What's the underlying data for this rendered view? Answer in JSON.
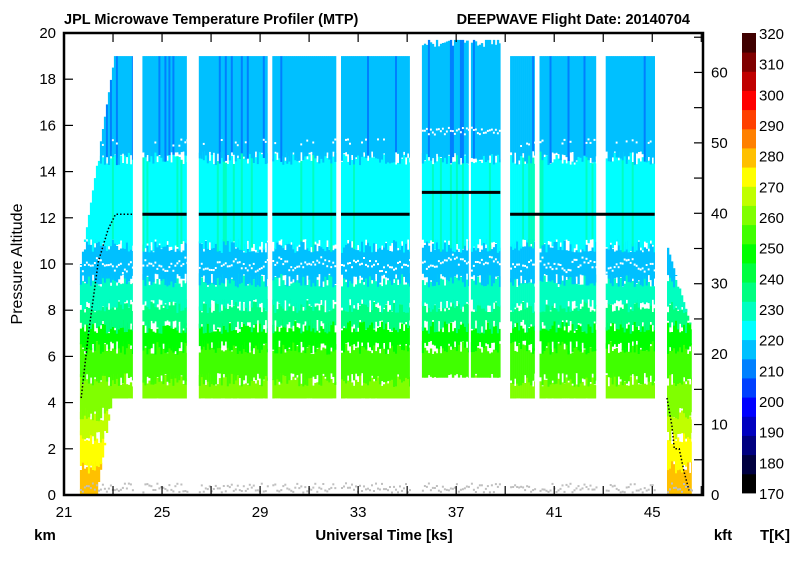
{
  "chart_data": {
    "type": "heatmap",
    "title": "JPL Microwave Temperature Profiler (MTP)",
    "subtitle": "DEEPWAVE  Flight Date: 20140704",
    "xlabel": "Universal Time [ks]",
    "ylabel": "Pressure Altitude",
    "x_unit_label": "km",
    "y2_unit_label": "kft",
    "colorbar_label": "T[K]",
    "xlim": [
      21,
      47.07
    ],
    "ylim": [
      0,
      20
    ],
    "y2lim": [
      0,
      65.6
    ],
    "xticks": [
      21,
      25,
      29,
      33,
      37,
      41,
      45
    ],
    "yticks": [
      0,
      2,
      4,
      6,
      8,
      10,
      12,
      14,
      16,
      18,
      20
    ],
    "y2ticks": [
      0,
      10,
      20,
      30,
      40,
      50,
      60
    ],
    "colorbar": {
      "range": [
        170,
        320
      ],
      "ticks": [
        170,
        180,
        190,
        200,
        210,
        220,
        230,
        240,
        250,
        260,
        270,
        280,
        290,
        300,
        310,
        320
      ],
      "colors": [
        "#000000",
        "#000040",
        "#000080",
        "#0000c0",
        "#0000ff",
        "#0040ff",
        "#0080ff",
        "#00c0ff",
        "#00ffff",
        "#00ffc0",
        "#00ff80",
        "#00ff40",
        "#00ff00",
        "#40ff00",
        "#80ff00",
        "#c0ff00",
        "#ffff00",
        "#ffc000",
        "#ff8000",
        "#ff4000",
        "#ff0000",
        "#c00000",
        "#800000",
        "#400000"
      ]
    },
    "temperature_profile_K": [
      {
        "alt_km": [
          0,
          1.2
        ],
        "T": 281
      },
      {
        "alt_km": [
          1.2,
          2.5
        ],
        "T": 272
      },
      {
        "alt_km": [
          2.5,
          3.5
        ],
        "T": 266
      },
      {
        "alt_km": [
          3.5,
          5.0
        ],
        "T": 260
      },
      {
        "alt_km": [
          5.0,
          6.4
        ],
        "T": 252
      },
      {
        "alt_km": [
          6.4,
          7.3
        ],
        "T": 245
      },
      {
        "alt_km": [
          7.3,
          8.2
        ],
        "T": 238
      },
      {
        "alt_km": [
          8.2,
          9.3
        ],
        "T": 232
      },
      {
        "alt_km": [
          9.3,
          10.8
        ],
        "T": 218
      },
      {
        "alt_km": [
          10.8,
          14.6
        ],
        "T": 225
      },
      {
        "alt_km": [
          14.6,
          19.7
        ],
        "T": 215
      }
    ],
    "segments": [
      {
        "t": [
          21.65,
          23.8
        ],
        "alt_bottom": [
          0,
          4.2
        ],
        "alt_top": [
          10,
          19
        ],
        "kind": "ascent"
      },
      {
        "t": [
          24.2,
          26.0
        ],
        "alt_bottom": [
          4.2,
          4.2
        ],
        "alt_top": [
          19,
          19
        ]
      },
      {
        "t": [
          26.5,
          29.3
        ],
        "alt_bottom": [
          4.2,
          4.2
        ],
        "alt_top": [
          19,
          19
        ]
      },
      {
        "t": [
          29.5,
          32.1
        ],
        "alt_bottom": [
          4.2,
          4.2
        ],
        "alt_top": [
          19,
          19
        ]
      },
      {
        "t": [
          32.3,
          35.1
        ],
        "alt_bottom": [
          4.2,
          4.2
        ],
        "alt_top": [
          19,
          19
        ]
      },
      {
        "t": [
          35.6,
          37.5
        ],
        "alt_bottom": [
          5.1,
          5.1
        ],
        "alt_top": [
          19.7,
          19.7
        ]
      },
      {
        "t": [
          37.6,
          38.8
        ],
        "alt_bottom": [
          5.1,
          5.1
        ],
        "alt_top": [
          19.7,
          19.7
        ]
      },
      {
        "t": [
          39.2,
          40.2
        ],
        "alt_bottom": [
          4.2,
          4.2
        ],
        "alt_top": [
          19,
          19
        ]
      },
      {
        "t": [
          40.4,
          42.7
        ],
        "alt_bottom": [
          4.2,
          4.2
        ],
        "alt_top": [
          19,
          19
        ]
      },
      {
        "t": [
          43.1,
          45.1
        ],
        "alt_bottom": [
          4.2,
          4.2
        ],
        "alt_top": [
          19,
          19
        ]
      },
      {
        "t": [
          45.6,
          46.6
        ],
        "alt_bottom": [
          0,
          0
        ],
        "alt_top": [
          10.7,
          7.1
        ],
        "kind": "descent"
      }
    ],
    "aircraft_altitude_km": [
      [
        [
          21.7,
          4.2
        ],
        [
          22.0,
          7.0
        ],
        [
          22.4,
          10.1
        ],
        [
          22.8,
          11.5
        ],
        [
          23.1,
          12.15
        ],
        [
          23.8,
          12.15
        ]
      ],
      [
        [
          24.2,
          12.15
        ],
        [
          26.0,
          12.15
        ]
      ],
      [
        [
          26.5,
          12.15
        ],
        [
          29.3,
          12.15
        ]
      ],
      [
        [
          29.5,
          12.15
        ],
        [
          32.1,
          12.15
        ]
      ],
      [
        [
          32.3,
          12.15
        ],
        [
          35.1,
          12.15
        ]
      ],
      [
        [
          35.6,
          13.1
        ],
        [
          38.8,
          13.1
        ]
      ],
      [
        [
          39.2,
          12.15
        ],
        [
          45.1,
          12.15
        ]
      ],
      [
        [
          45.6,
          4.2
        ],
        [
          45.8,
          3.0
        ],
        [
          45.9,
          2.0
        ],
        [
          46.1,
          2.0
        ],
        [
          46.3,
          1.0
        ],
        [
          46.5,
          0.2
        ]
      ]
    ],
    "tropopause_km": {
      "primary": 10.0,
      "secondary": 15.3,
      "secondary_35_39ks": 15.8
    },
    "low_level_marks_km": 0.35
  }
}
